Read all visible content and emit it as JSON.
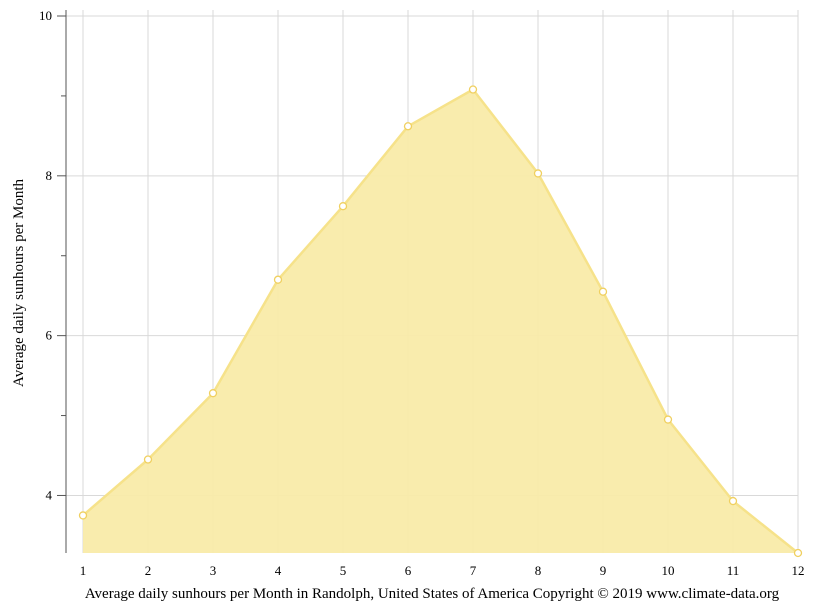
{
  "chart_data": {
    "type": "area",
    "x": [
      1,
      2,
      3,
      4,
      5,
      6,
      7,
      8,
      9,
      10,
      11,
      12
    ],
    "values": [
      3.75,
      4.45,
      5.28,
      6.7,
      7.62,
      8.62,
      9.08,
      8.03,
      6.55,
      4.95,
      3.93,
      3.28
    ],
    "xlabel": "Average daily sunhours per Month in Randolph, United States of America Copyright © 2019 www.climate-data.org",
    "ylabel": "Average daily sunhours per Month",
    "xlim": [
      1,
      12
    ],
    "ylim": [
      3.28,
      10
    ],
    "yticks": [
      4,
      6,
      8,
      10
    ],
    "xticks": [
      1,
      2,
      3,
      4,
      5,
      6,
      7,
      8,
      9,
      10,
      11,
      12
    ],
    "grid": true,
    "colors": {
      "fill": "#f9eba9",
      "line": "#f6e28a",
      "marker_fill": "#ffffff",
      "marker_stroke": "#f0d060",
      "grid": "#d9d9d9",
      "axis": "#555555"
    }
  }
}
